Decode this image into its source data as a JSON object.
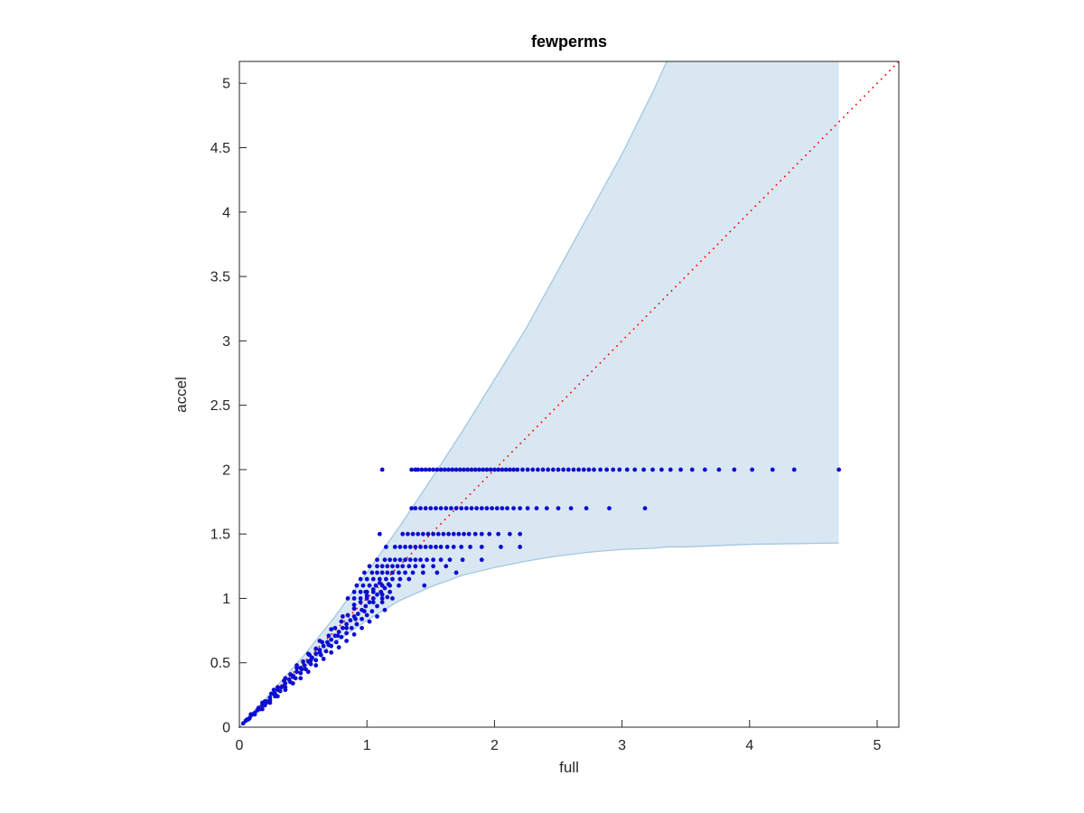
{
  "chart_data": {
    "type": "scatter",
    "title": "fewperms",
    "xlabel": "full",
    "ylabel": "accel",
    "xlim": [
      0,
      5.17
    ],
    "ylim": [
      0,
      5.17
    ],
    "xticks": [
      0,
      1,
      2,
      3,
      4,
      5
    ],
    "yticks": [
      0,
      0.5,
      1,
      1.5,
      2,
      2.5,
      3,
      3.5,
      4,
      4.5,
      5
    ],
    "xtick_labels": [
      "0",
      "1",
      "2",
      "3",
      "4",
      "5"
    ],
    "ytick_labels": [
      "0",
      "0.5",
      "1",
      "1.5",
      "2",
      "2.5",
      "3",
      "3.5",
      "4",
      "4.5",
      "5"
    ],
    "grid": false,
    "legend": "none",
    "colors": {
      "points": "#0d0dd0",
      "identity_line": "#ff0000",
      "band_fill": "#d9e7f2",
      "band_edge": "#a3c8e0",
      "axis": "#262626"
    },
    "identity_line": {
      "from": [
        0,
        0
      ],
      "to": [
        5.17,
        5.17
      ],
      "style": "dotted"
    },
    "band": {
      "x": [
        0,
        0.25,
        0.5,
        0.75,
        1.0,
        1.25,
        1.5,
        1.75,
        2.0,
        2.25,
        2.5,
        2.75,
        3.0,
        3.25,
        3.35,
        3.5,
        4.0,
        4.7
      ],
      "upper": [
        0,
        0.27,
        0.55,
        0.86,
        1.2,
        1.55,
        1.92,
        2.3,
        2.7,
        3.1,
        3.55,
        4.0,
        4.45,
        4.95,
        5.17,
        5.17,
        5.17,
        5.17
      ],
      "lower": [
        0,
        0.24,
        0.46,
        0.66,
        0.83,
        0.98,
        1.09,
        1.18,
        1.24,
        1.29,
        1.33,
        1.36,
        1.38,
        1.39,
        1.4,
        1.4,
        1.42,
        1.43
      ],
      "x_end": 4.7
    },
    "rows": [
      {
        "y": 2.0,
        "x": [
          1.12,
          1.35,
          1.38,
          1.4,
          1.43,
          1.46,
          1.49,
          1.52,
          1.55,
          1.58,
          1.61,
          1.64,
          1.67,
          1.7,
          1.73,
          1.76,
          1.79,
          1.82,
          1.85,
          1.88,
          1.91,
          1.94,
          1.97,
          2.0,
          2.03,
          2.06,
          2.09,
          2.12,
          2.15,
          2.18,
          2.22,
          2.26,
          2.3,
          2.34,
          2.38,
          2.42,
          2.46,
          2.5,
          2.54,
          2.58,
          2.62,
          2.66,
          2.7,
          2.74,
          2.78,
          2.83,
          2.88,
          2.93,
          2.98,
          3.04,
          3.1,
          3.17,
          3.24,
          3.31,
          3.38,
          3.46,
          3.55,
          3.65,
          3.76,
          3.88,
          4.02,
          4.18,
          4.35,
          4.7
        ]
      },
      {
        "y": 1.7,
        "x": [
          1.35,
          1.38,
          1.42,
          1.46,
          1.5,
          1.54,
          1.58,
          1.62,
          1.66,
          1.7,
          1.74,
          1.78,
          1.82,
          1.86,
          1.9,
          1.94,
          1.98,
          2.02,
          2.06,
          2.1,
          2.15,
          2.2,
          2.26,
          2.33,
          2.41,
          2.5,
          2.6,
          2.72,
          2.9,
          3.18
        ]
      },
      {
        "y": 1.5,
        "x": [
          1.1,
          1.28,
          1.32,
          1.36,
          1.4,
          1.44,
          1.48,
          1.52,
          1.56,
          1.6,
          1.64,
          1.68,
          1.72,
          1.76,
          1.8,
          1.85,
          1.9,
          1.96,
          2.03,
          2.12,
          2.2
        ]
      },
      {
        "y": 1.4,
        "x": [
          1.15,
          1.22,
          1.26,
          1.3,
          1.34,
          1.38,
          1.42,
          1.46,
          1.5,
          1.54,
          1.58,
          1.63,
          1.68,
          1.74,
          1.81,
          1.9,
          2.05,
          2.2
        ]
      },
      {
        "y": 1.3,
        "x": [
          1.08,
          1.14,
          1.18,
          1.22,
          1.26,
          1.3,
          1.34,
          1.38,
          1.42,
          1.47,
          1.52,
          1.58,
          1.65,
          1.75,
          1.9
        ]
      },
      {
        "y": 1.25,
        "x": [
          1.02,
          1.08,
          1.12,
          1.16,
          1.2,
          1.24,
          1.28,
          1.33,
          1.38,
          1.44,
          1.52,
          1.62
        ]
      },
      {
        "y": 1.2,
        "x": [
          0.98,
          1.04,
          1.08,
          1.12,
          1.16,
          1.2,
          1.25,
          1.3,
          1.36,
          1.44,
          1.55,
          1.7
        ]
      },
      {
        "y": 1.15,
        "x": [
          0.95,
          1.0,
          1.05,
          1.1,
          1.15,
          1.2,
          1.26,
          1.33
        ]
      },
      {
        "y": 1.1,
        "x": [
          0.92,
          0.97,
          1.02,
          1.07,
          1.12,
          1.18,
          1.25,
          1.45
        ]
      },
      {
        "y": 1.05,
        "x": [
          0.9,
          0.95,
          1.0,
          1.05,
          1.11,
          1.18
        ]
      },
      {
        "y": 1.0,
        "x": [
          0.85,
          0.9,
          0.95,
          1.0,
          1.05,
          1.12,
          1.2
        ]
      }
    ],
    "points": [
      [
        0.03,
        0.03
      ],
      [
        0.06,
        0.06
      ],
      [
        0.09,
        0.09
      ],
      [
        0.12,
        0.11
      ],
      [
        0.15,
        0.14
      ],
      [
        0.18,
        0.17
      ],
      [
        0.21,
        0.2
      ],
      [
        0.24,
        0.23
      ],
      [
        0.27,
        0.26
      ],
      [
        0.3,
        0.29
      ],
      [
        0.33,
        0.31
      ],
      [
        0.36,
        0.34
      ],
      [
        0.39,
        0.37
      ],
      [
        0.42,
        0.4
      ],
      [
        0.45,
        0.43
      ],
      [
        0.48,
        0.46
      ],
      [
        0.51,
        0.48
      ],
      [
        0.54,
        0.51
      ],
      [
        0.57,
        0.54
      ],
      [
        0.6,
        0.57
      ],
      [
        0.63,
        0.6
      ],
      [
        0.66,
        0.63
      ],
      [
        0.69,
        0.66
      ],
      [
        0.72,
        0.68
      ],
      [
        0.75,
        0.71
      ],
      [
        0.78,
        0.74
      ],
      [
        0.81,
        0.77
      ],
      [
        0.84,
        0.8
      ],
      [
        0.87,
        0.83
      ],
      [
        0.9,
        0.86
      ],
      [
        0.93,
        0.88
      ],
      [
        0.96,
        0.91
      ],
      [
        0.99,
        0.94
      ],
      [
        1.02,
        0.97
      ],
      [
        1.05,
        1.0
      ],
      [
        1.08,
        1.03
      ],
      [
        1.11,
        1.05
      ],
      [
        1.14,
        1.08
      ],
      [
        1.17,
        1.11
      ],
      [
        0.08,
        0.07
      ],
      [
        0.12,
        0.1
      ],
      [
        0.16,
        0.14
      ],
      [
        0.2,
        0.17
      ],
      [
        0.24,
        0.21
      ],
      [
        0.28,
        0.24
      ],
      [
        0.32,
        0.28
      ],
      [
        0.36,
        0.31
      ],
      [
        0.4,
        0.35
      ],
      [
        0.44,
        0.38
      ],
      [
        0.48,
        0.42
      ],
      [
        0.52,
        0.45
      ],
      [
        0.56,
        0.49
      ],
      [
        0.6,
        0.52
      ],
      [
        0.64,
        0.56
      ],
      [
        0.68,
        0.59
      ],
      [
        0.72,
        0.63
      ],
      [
        0.76,
        0.66
      ],
      [
        0.8,
        0.7
      ],
      [
        0.84,
        0.73
      ],
      [
        0.88,
        0.77
      ],
      [
        0.92,
        0.8
      ],
      [
        0.96,
        0.84
      ],
      [
        1.0,
        0.87
      ],
      [
        1.04,
        0.9
      ],
      [
        1.08,
        0.94
      ],
      [
        1.12,
        0.97
      ],
      [
        1.16,
        1.01
      ],
      [
        0.05,
        0.05
      ],
      [
        0.1,
        0.1
      ],
      [
        0.15,
        0.15
      ],
      [
        0.2,
        0.2
      ],
      [
        0.25,
        0.26
      ],
      [
        0.3,
        0.31
      ],
      [
        0.35,
        0.36
      ],
      [
        0.4,
        0.41
      ],
      [
        0.45,
        0.46
      ],
      [
        0.5,
        0.51
      ],
      [
        0.55,
        0.56
      ],
      [
        0.6,
        0.61
      ],
      [
        0.65,
        0.66
      ],
      [
        0.7,
        0.71
      ],
      [
        0.75,
        0.77
      ],
      [
        0.8,
        0.82
      ],
      [
        0.85,
        0.87
      ],
      [
        0.9,
        0.92
      ],
      [
        0.95,
        0.97
      ],
      [
        1.0,
        1.02
      ],
      [
        1.05,
        1.07
      ],
      [
        1.1,
        1.12
      ],
      [
        0.12,
        0.1
      ],
      [
        0.18,
        0.14
      ],
      [
        0.24,
        0.19
      ],
      [
        0.3,
        0.24
      ],
      [
        0.36,
        0.29
      ],
      [
        0.42,
        0.34
      ],
      [
        0.48,
        0.38
      ],
      [
        0.54,
        0.43
      ],
      [
        0.6,
        0.48
      ],
      [
        0.66,
        0.53
      ],
      [
        0.72,
        0.58
      ],
      [
        0.78,
        0.62
      ],
      [
        0.84,
        0.67
      ],
      [
        0.9,
        0.72
      ],
      [
        0.96,
        0.77
      ],
      [
        1.02,
        0.82
      ],
      [
        1.08,
        0.86
      ],
      [
        1.14,
        0.91
      ],
      [
        0.07,
        0.06
      ],
      [
        0.14,
        0.13
      ],
      [
        0.21,
        0.19
      ],
      [
        0.28,
        0.26
      ],
      [
        0.35,
        0.32
      ],
      [
        0.42,
        0.39
      ],
      [
        0.49,
        0.45
      ],
      [
        0.56,
        0.52
      ],
      [
        0.63,
        0.58
      ],
      [
        0.7,
        0.64
      ],
      [
        0.77,
        0.71
      ],
      [
        0.84,
        0.77
      ],
      [
        0.91,
        0.84
      ],
      [
        0.98,
        0.9
      ],
      [
        1.05,
        0.97
      ],
      [
        1.12,
        1.03
      ],
      [
        0.09,
        0.1
      ],
      [
        0.18,
        0.19
      ],
      [
        0.27,
        0.29
      ],
      [
        0.36,
        0.38
      ],
      [
        0.45,
        0.48
      ],
      [
        0.54,
        0.57
      ],
      [
        0.63,
        0.67
      ],
      [
        0.72,
        0.76
      ],
      [
        0.81,
        0.86
      ],
      [
        0.9,
        0.95
      ],
      [
        0.99,
        1.05
      ]
    ]
  }
}
